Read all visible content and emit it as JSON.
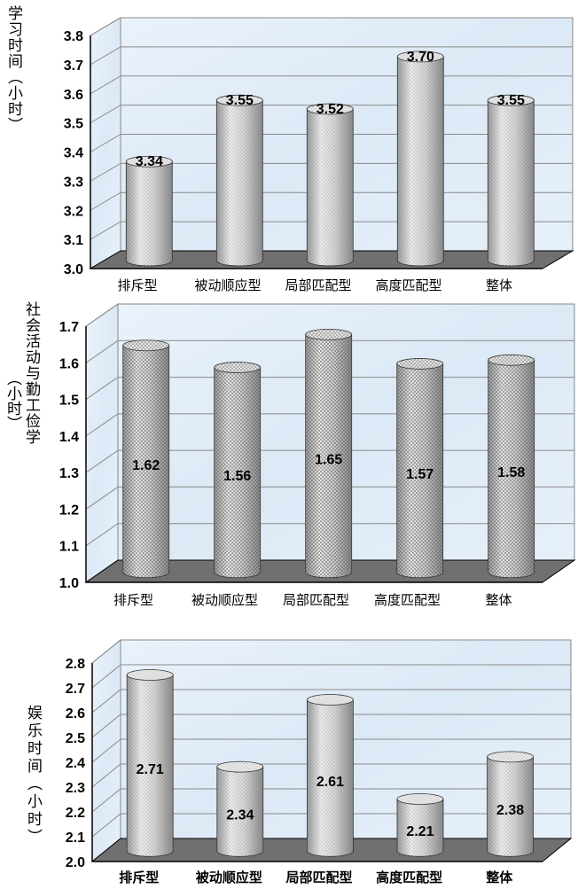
{
  "chart_data": [
    {
      "type": "bar",
      "ylabel": "学习时间（小时）",
      "categories": [
        "排斥型",
        "被动顺应型",
        "局部匹配型",
        "高度匹配型",
        "整体"
      ],
      "values": [
        3.34,
        3.55,
        3.52,
        3.7,
        3.55
      ],
      "value_labels": [
        "3.34",
        "3.55",
        "3.52",
        "3.70",
        "3.55"
      ],
      "ylim": [
        3.0,
        3.8
      ],
      "yticks": [
        "3.0",
        "3.1",
        "3.2",
        "3.3",
        "3.4",
        "3.5",
        "3.6",
        "3.7",
        "3.8"
      ],
      "label_position": "top",
      "pattern": "dots",
      "grid": true
    },
    {
      "type": "bar",
      "ylabel": "社会活动与勤工俭学",
      "ylabel_unit": "（小时）",
      "categories": [
        "排斥型",
        "被动顺应型",
        "局部匹配型",
        "高度匹配型",
        "整体"
      ],
      "values": [
        1.62,
        1.56,
        1.65,
        1.57,
        1.58
      ],
      "value_labels": [
        "1.62",
        "1.56",
        "1.65",
        "1.57",
        "1.58"
      ],
      "ylim": [
        1.0,
        1.7
      ],
      "yticks": [
        "1.0",
        "1.1",
        "1.2",
        "1.3",
        "1.4",
        "1.5",
        "1.6",
        "1.7"
      ],
      "label_position": "middle",
      "pattern": "crosshatch",
      "grid": true
    },
    {
      "type": "bar",
      "ylabel": "娱乐时间（小时）",
      "categories": [
        "排斥型",
        "被动顺应型",
        "局部匹配型",
        "高度匹配型",
        "整体"
      ],
      "values": [
        2.71,
        2.34,
        2.61,
        2.21,
        2.38
      ],
      "value_labels": [
        "2.71",
        "2.34",
        "2.61",
        "2.21",
        "2.38"
      ],
      "ylim": [
        2.0,
        2.8
      ],
      "yticks": [
        "2.0",
        "2.1",
        "2.2",
        "2.3",
        "2.4",
        "2.5",
        "2.6",
        "2.7",
        "2.8"
      ],
      "label_position": "middle",
      "pattern": "dots",
      "grid": true
    }
  ],
  "colors": {
    "wall": "#dce9f6",
    "floor": "#707070",
    "cylinder_body": "#d4d4d4",
    "cylinder_top": "#e8e8e8",
    "axis": "#000000"
  }
}
